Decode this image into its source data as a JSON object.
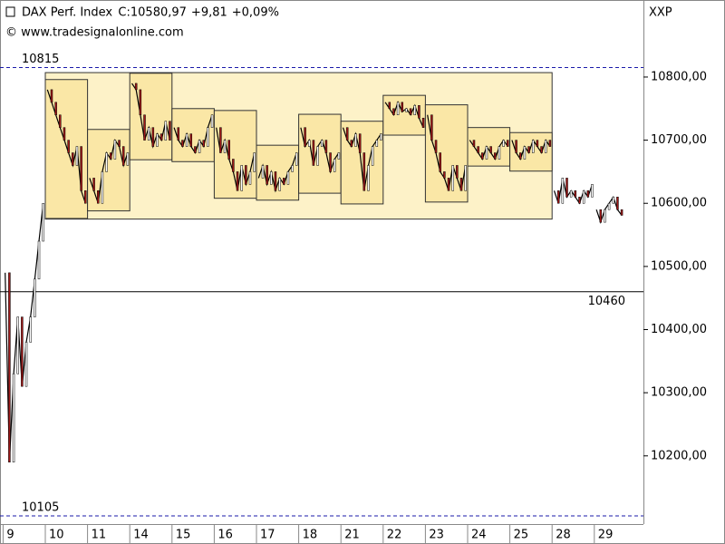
{
  "chart_data": {
    "type": "candlestick-range",
    "title": "DAX Perf. Index",
    "close_label": "C:10580,97",
    "change_label": "+9,81",
    "change_pct_label": "+0,09%",
    "source": "© www.tradesignalonline.com",
    "axis_label": "XXP",
    "line_color": "#000000",
    "change_color": "#22aa22",
    "ylim": [
      10092,
      10922
    ],
    "yticks": [
      {
        "value": 10200,
        "label": "10200,00"
      },
      {
        "value": 10300,
        "label": "10300,00"
      },
      {
        "value": 10400,
        "label": "10400,00"
      },
      {
        "value": 10500,
        "label": "10500,00"
      },
      {
        "value": 10600,
        "label": "10600,00"
      },
      {
        "value": 10700,
        "label": "10700,00"
      },
      {
        "value": 10800,
        "label": "10800,00"
      }
    ],
    "levels": [
      {
        "value": 10815,
        "color": "#1a1aaa",
        "dashed": true
      },
      {
        "value": 10105,
        "color": "#1a1aaa",
        "dashed": true
      },
      {
        "value": 10460,
        "color": "#000000",
        "dashed": false
      }
    ],
    "days": [
      {
        "label": "9",
        "values": [
          10490,
          10190,
          10330,
          10420,
          10310,
          10380,
          10420,
          10480,
          10540,
          10600
        ]
      },
      {
        "label": "10",
        "values": [
          10780,
          10760,
          10740,
          10720,
          10700,
          10680,
          10660,
          10690,
          10620,
          10600
        ],
        "box": [
          10796,
          10576
        ]
      },
      {
        "label": "11",
        "values": [
          10640,
          10620,
          10600,
          10650,
          10680,
          10670,
          10700,
          10690,
          10660,
          10680
        ],
        "box": [
          10717,
          10588
        ]
      },
      {
        "label": "14",
        "values": [
          10790,
          10780,
          10740,
          10700,
          10720,
          10690,
          10710,
          10700,
          10730,
          10700
        ],
        "box": [
          10806,
          10669
        ]
      },
      {
        "label": "15",
        "values": [
          10720,
          10700,
          10690,
          10710,
          10690,
          10680,
          10700,
          10690,
          10720,
          10740
        ],
        "box": [
          10750,
          10666
        ]
      },
      {
        "label": "16",
        "values": [
          10720,
          10680,
          10700,
          10670,
          10650,
          10620,
          10660,
          10630,
          10650,
          10680
        ],
        "box": [
          10747,
          10608
        ]
      },
      {
        "label": "17",
        "values": [
          10640,
          10660,
          10630,
          10650,
          10620,
          10640,
          10630,
          10650,
          10660,
          10680
        ],
        "box": [
          10692,
          10605
        ]
      },
      {
        "label": "18",
        "values": [
          10720,
          10690,
          10700,
          10660,
          10690,
          10700,
          10680,
          10650,
          10670,
          10680
        ],
        "box": [
          10741,
          10616
        ]
      },
      {
        "label": "21",
        "values": [
          10720,
          10700,
          10690,
          10710,
          10680,
          10620,
          10660,
          10690,
          10700,
          10710
        ],
        "box": [
          10730,
          10599
        ]
      },
      {
        "label": "22",
        "values": [
          10760,
          10750,
          10740,
          10760,
          10745,
          10750,
          10740,
          10755,
          10735,
          10720
        ],
        "box": [
          10771,
          10708
        ]
      },
      {
        "label": "23",
        "values": [
          10740,
          10700,
          10680,
          10650,
          10640,
          10620,
          10660,
          10640,
          10620,
          10660
        ],
        "box": [
          10756,
          10602
        ]
      },
      {
        "label": "24",
        "values": [
          10700,
          10690,
          10680,
          10670,
          10690,
          10680,
          10670,
          10690,
          10700,
          10690
        ],
        "box": [
          10720,
          10659
        ]
      },
      {
        "label": "25",
        "values": [
          10700,
          10680,
          10670,
          10690,
          10680,
          10700,
          10690,
          10680,
          10700,
          10690
        ],
        "box": [
          10712,
          10651
        ]
      },
      {
        "label": "28",
        "values": [
          10620,
          10600,
          10640,
          10610,
          10620,
          10610,
          10600,
          10620,
          10610,
          10630
        ]
      },
      {
        "label": "29",
        "values": [
          10590,
          10570,
          10590,
          10600,
          10610,
          10590,
          10581
        ]
      }
    ],
    "range_box": [
      10807,
      10575
    ],
    "box_color": "#fae7a6",
    "range_box_color": "#fdf2c8"
  }
}
